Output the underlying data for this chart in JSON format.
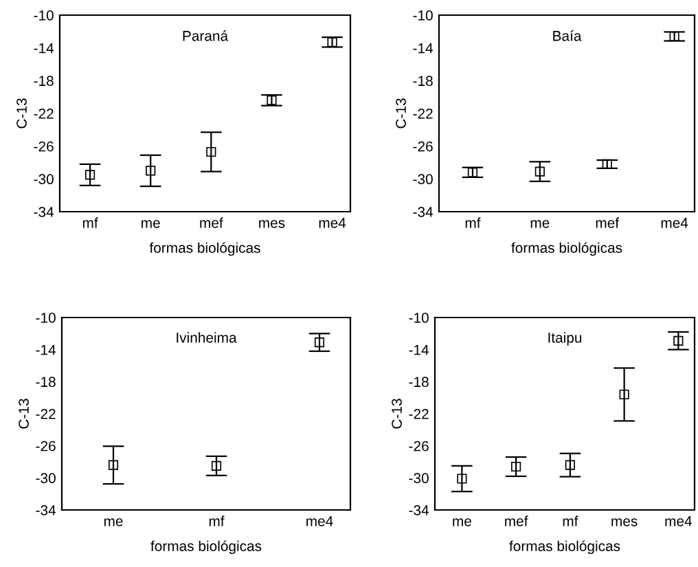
{
  "chart_data": [
    {
      "type": "scatter",
      "title": "Paraná",
      "xlabel": "formas biológicas",
      "ylabel": "C-13",
      "categories": [
        "mf",
        "me",
        "mef",
        "mes",
        "me4"
      ],
      "values": [
        -29.5,
        -29.0,
        -26.7,
        -20.4,
        -13.3
      ],
      "errors": [
        1.3,
        1.9,
        2.4,
        0.65,
        0.6
      ],
      "color": "#000000",
      "marker": "square",
      "ylim": [
        -34,
        -10
      ],
      "yticks": [
        -34,
        -30,
        -26,
        -22,
        -18,
        -14,
        -10
      ],
      "grid": false,
      "legend": false
    },
    {
      "type": "scatter",
      "title": "Baía",
      "xlabel": "formas biológicas",
      "ylabel": "C-13",
      "categories": [
        "mf",
        "me",
        "mef",
        "me4"
      ],
      "values": [
        -29.2,
        -29.1,
        -28.2,
        -12.6
      ],
      "errors": [
        0.6,
        1.2,
        0.5,
        0.55
      ],
      "color": "#000000",
      "marker": "square",
      "ylim": [
        -34,
        -10
      ],
      "yticks": [
        -34,
        -30,
        -26,
        -22,
        -18,
        -14,
        -10
      ],
      "grid": false,
      "legend": false
    },
    {
      "type": "scatter",
      "title": "Ivinheima",
      "xlabel": "formas biológicas",
      "ylabel": "C-13",
      "categories": [
        "me",
        "mf",
        "me4"
      ],
      "values": [
        -28.4,
        -28.5,
        -13.1
      ],
      "errors": [
        2.35,
        1.2,
        1.1
      ],
      "color": "#000000",
      "marker": "square",
      "ylim": [
        -34,
        -10
      ],
      "yticks": [
        -34,
        -30,
        -26,
        -22,
        -18,
        -14,
        -10
      ],
      "grid": false,
      "legend": false
    },
    {
      "type": "scatter",
      "title": "Itaipu",
      "xlabel": "formas biológicas",
      "ylabel": "C-13",
      "categories": [
        "me",
        "mef",
        "mf",
        "mes",
        "me4"
      ],
      "values": [
        -30.1,
        -28.6,
        -28.4,
        -19.6,
        -12.9
      ],
      "errors": [
        1.6,
        1.2,
        1.45,
        3.3,
        1.1
      ],
      "color": "#000000",
      "marker": "square",
      "ylim": [
        -34,
        -10
      ],
      "yticks": [
        -34,
        -30,
        -26,
        -22,
        -18,
        -14,
        -10
      ],
      "grid": false,
      "legend": false
    }
  ]
}
